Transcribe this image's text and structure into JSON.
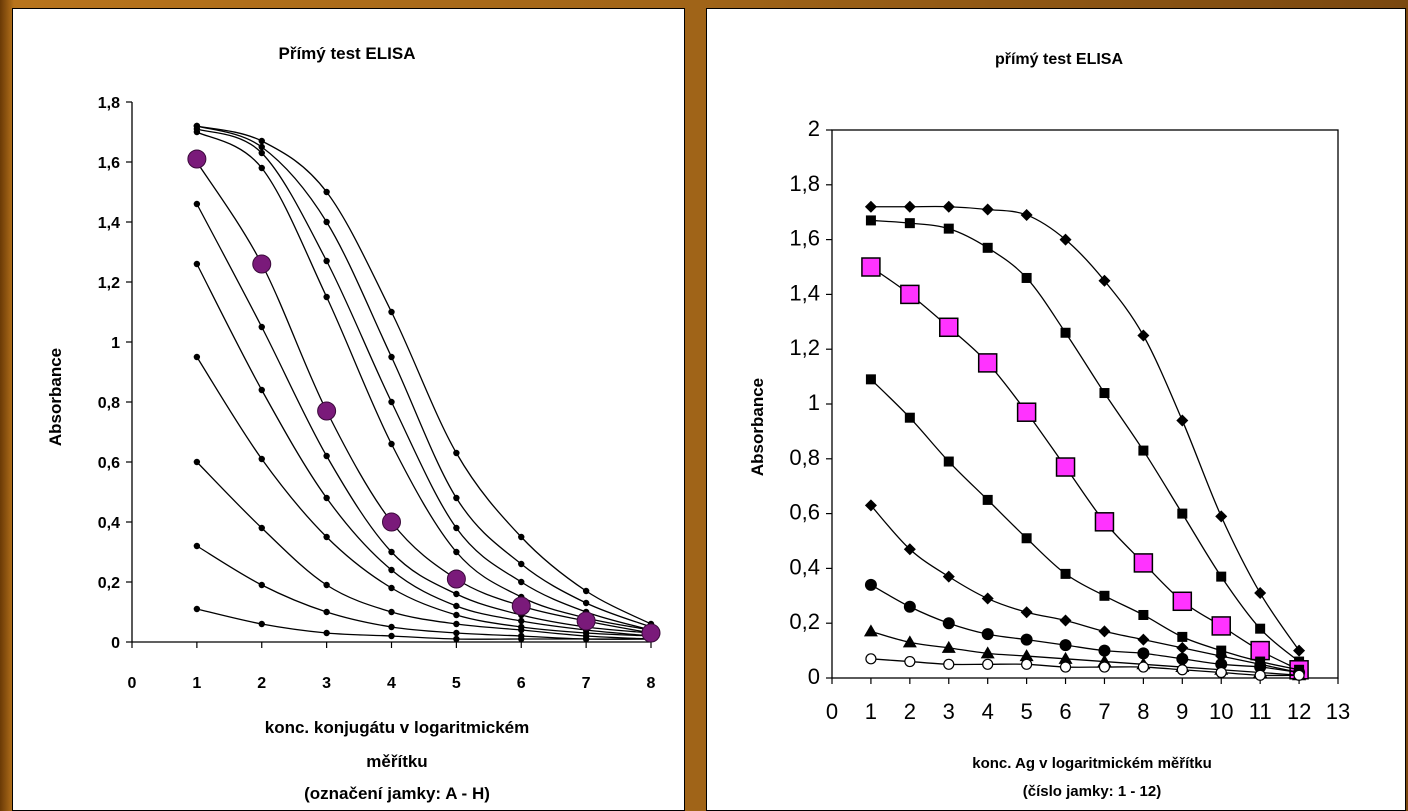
{
  "chart_data": [
    {
      "type": "line",
      "title": "Přímý  test ELISA",
      "ylabel": "Absorbance",
      "xlabel_lines": [
        "konc. konjugátu v logaritmickém",
        "měřítku",
        "(označení jamky: A - H)"
      ],
      "xlim": [
        0,
        8
      ],
      "ylim": [
        0,
        1.8
      ],
      "xticks": [
        "0",
        "1",
        "2",
        "3",
        "4",
        "5",
        "6",
        "7",
        "8"
      ],
      "yticks": [
        "0",
        "0,2",
        "0,4",
        "0,6",
        "0,8",
        "1",
        "1,2",
        "1,4",
        "1,6",
        "1,8"
      ],
      "x": [
        1,
        2,
        3,
        4,
        5,
        6,
        7,
        8
      ],
      "series": [
        {
          "values": [
            1.72,
            1.67,
            1.5,
            1.1,
            0.63,
            0.35,
            0.17,
            0.06
          ]
        },
        {
          "values": [
            1.72,
            1.65,
            1.4,
            0.95,
            0.48,
            0.26,
            0.13,
            0.05
          ]
        },
        {
          "values": [
            1.71,
            1.63,
            1.27,
            0.8,
            0.38,
            0.2,
            0.1,
            0.04
          ]
        },
        {
          "values": [
            1.7,
            1.58,
            1.15,
            0.66,
            0.3,
            0.15,
            0.08,
            0.04
          ]
        },
        {
          "values": [
            1.6,
            1.26,
            0.77,
            0.4,
            0.21,
            0.12,
            0.07,
            0.03
          ]
        },
        {
          "values": [
            1.46,
            1.05,
            0.62,
            0.3,
            0.16,
            0.09,
            0.05,
            0.03
          ]
        },
        {
          "values": [
            1.26,
            0.84,
            0.48,
            0.24,
            0.12,
            0.07,
            0.04,
            0.02
          ]
        },
        {
          "values": [
            0.95,
            0.61,
            0.35,
            0.18,
            0.09,
            0.05,
            0.03,
            0.02
          ]
        },
        {
          "values": [
            0.6,
            0.38,
            0.19,
            0.1,
            0.06,
            0.04,
            0.02,
            0.01
          ]
        },
        {
          "values": [
            0.32,
            0.19,
            0.1,
            0.05,
            0.03,
            0.02,
            0.01,
            0.01
          ]
        },
        {
          "values": [
            0.11,
            0.06,
            0.03,
            0.02,
            0.01,
            0.01,
            0.01,
            0.01
          ]
        }
      ],
      "highlight": {
        "color": "#7a1a7a",
        "values": [
          1.61,
          1.26,
          0.77,
          0.4,
          0.21,
          0.12,
          0.07,
          0.03
        ]
      }
    },
    {
      "type": "line",
      "title": "přímý test ELISA",
      "ylabel": "Absorbance",
      "xlabel_lines": [
        "konc. Ag v logaritmickém měřítku",
        "(číslo jamky: 1 - 12)"
      ],
      "xlim": [
        0,
        13
      ],
      "ylim": [
        0,
        2
      ],
      "xticks": [
        "0",
        "1",
        "2",
        "3",
        "4",
        "5",
        "6",
        "7",
        "8",
        "9",
        "10",
        "11",
        "12",
        "13"
      ],
      "yticks": [
        "0",
        "0,2",
        "0,4",
        "0,6",
        "0,8",
        "1",
        "1,2",
        "1,4",
        "1,6",
        "1,8",
        "2"
      ],
      "x": [
        1,
        2,
        3,
        4,
        5,
        6,
        7,
        8,
        9,
        10,
        11,
        12
      ],
      "series": [
        {
          "marker": "diamond",
          "values": [
            1.72,
            1.72,
            1.72,
            1.71,
            1.69,
            1.6,
            1.45,
            1.25,
            0.94,
            0.59,
            0.31,
            0.1
          ]
        },
        {
          "marker": "square",
          "values": [
            1.67,
            1.66,
            1.64,
            1.57,
            1.46,
            1.26,
            1.04,
            0.83,
            0.6,
            0.37,
            0.18,
            0.06
          ]
        },
        {
          "marker": "square-large",
          "color": "#ff33ff",
          "values": [
            1.5,
            1.4,
            1.28,
            1.15,
            0.97,
            0.77,
            0.57,
            0.42,
            0.28,
            0.19,
            0.1,
            0.03
          ]
        },
        {
          "marker": "square",
          "values": [
            1.09,
            0.95,
            0.79,
            0.65,
            0.51,
            0.38,
            0.3,
            0.23,
            0.15,
            0.1,
            0.06,
            0.03
          ]
        },
        {
          "marker": "diamond",
          "values": [
            0.63,
            0.47,
            0.37,
            0.29,
            0.24,
            0.21,
            0.17,
            0.14,
            0.11,
            0.08,
            0.05,
            0.02
          ]
        },
        {
          "marker": "circle",
          "values": [
            0.34,
            0.26,
            0.2,
            0.16,
            0.14,
            0.12,
            0.1,
            0.09,
            0.07,
            0.05,
            0.04,
            0.02
          ]
        },
        {
          "marker": "triangle",
          "values": [
            0.17,
            0.13,
            0.11,
            0.09,
            0.08,
            0.07,
            0.06,
            0.05,
            0.04,
            0.03,
            0.02,
            0.01
          ]
        },
        {
          "marker": "circle-open",
          "values": [
            0.07,
            0.06,
            0.05,
            0.05,
            0.05,
            0.04,
            0.04,
            0.04,
            0.03,
            0.02,
            0.01,
            0.01
          ]
        }
      ]
    }
  ]
}
